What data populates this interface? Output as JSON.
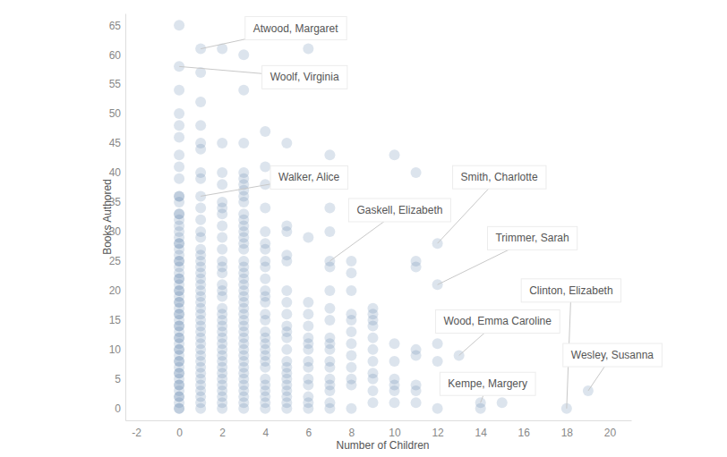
{
  "chart_data": {
    "type": "scatter",
    "marker": "circle",
    "color": "#4e79a7",
    "grid": false,
    "x_label": "Number of Children",
    "y_label": "Books Authored",
    "xlim": [
      -2.5,
      21
    ],
    "ylim": [
      -2,
      67
    ],
    "xticks": [
      -2,
      0,
      2,
      4,
      6,
      8,
      10,
      12,
      14,
      16,
      18,
      20
    ],
    "yticks": [
      0,
      5,
      10,
      15,
      20,
      25,
      30,
      35,
      40,
      45,
      50,
      55,
      60,
      65
    ],
    "x": [
      0,
      0,
      0,
      0,
      0,
      0,
      0,
      0,
      0,
      0,
      0,
      0,
      0,
      0,
      0,
      0,
      0,
      0,
      0,
      0,
      0,
      0,
      0,
      0,
      0,
      0,
      0,
      0,
      0,
      0,
      0,
      0,
      0,
      0,
      0,
      0,
      0,
      0,
      0,
      0,
      0,
      0,
      0,
      0,
      0,
      0,
      0,
      0,
      0,
      0,
      0,
      0,
      0,
      0,
      0,
      0,
      0,
      0,
      0,
      0,
      0,
      1,
      1,
      1,
      1,
      1,
      1,
      1,
      1,
      1,
      1,
      1,
      1,
      1,
      1,
      1,
      1,
      1,
      1,
      1,
      1,
      1,
      1,
      1,
      1,
      1,
      1,
      1,
      1,
      1,
      1,
      1,
      1,
      1,
      1,
      1,
      1,
      1,
      1,
      1,
      1,
      1,
      2,
      2,
      2,
      2,
      2,
      2,
      2,
      2,
      2,
      2,
      2,
      2,
      2,
      2,
      2,
      2,
      2,
      2,
      2,
      2,
      2,
      2,
      2,
      2,
      2,
      2,
      2,
      2,
      2,
      2,
      2,
      2,
      2,
      2,
      3,
      3,
      3,
      3,
      3,
      3,
      3,
      3,
      3,
      3,
      3,
      3,
      3,
      3,
      3,
      3,
      3,
      3,
      3,
      3,
      3,
      3,
      3,
      3,
      3,
      3,
      3,
      3,
      3,
      3,
      3,
      3,
      3,
      3,
      3,
      3,
      3,
      3,
      3,
      3,
      3,
      3,
      4,
      4,
      4,
      4,
      4,
      4,
      4,
      4,
      4,
      4,
      4,
      4,
      4,
      4,
      4,
      4,
      4,
      4,
      4,
      4,
      4,
      4,
      4,
      4,
      4,
      4,
      4,
      4,
      5,
      5,
      5,
      5,
      5,
      5,
      5,
      5,
      5,
      5,
      5,
      5,
      5,
      5,
      5,
      5,
      5,
      5,
      5,
      5,
      5,
      6,
      6,
      6,
      6,
      6,
      6,
      6,
      6,
      6,
      6,
      6,
      6,
      6,
      6,
      6,
      7,
      7,
      7,
      7,
      7,
      7,
      7,
      7,
      7,
      7,
      7,
      7,
      7,
      7,
      7,
      7,
      7,
      7,
      8,
      8,
      8,
      8,
      8,
      8,
      8,
      8,
      8,
      8,
      8,
      8,
      9,
      9,
      9,
      9,
      9,
      9,
      9,
      9,
      9,
      9,
      9,
      10,
      10,
      10,
      10,
      10,
      10,
      10,
      11,
      11,
      11,
      11,
      11,
      11,
      11,
      11,
      12,
      12,
      12,
      12,
      12,
      13,
      14,
      14,
      15,
      18,
      19
    ],
    "values": [
      65,
      58,
      54,
      50,
      48,
      46,
      43,
      41,
      39,
      36,
      36,
      35,
      33,
      33,
      32,
      31,
      30,
      29,
      28,
      28,
      27,
      26,
      25,
      25,
      24,
      23,
      22,
      22,
      21,
      20,
      20,
      19,
      18,
      18,
      17,
      16,
      16,
      15,
      14,
      14,
      13,
      12,
      12,
      11,
      10,
      10,
      9,
      8,
      8,
      7,
      6,
      6,
      5,
      4,
      4,
      3,
      2,
      2,
      1,
      0,
      0,
      61,
      57,
      52,
      48,
      45,
      44,
      40,
      39,
      36,
      34,
      32,
      30,
      29,
      27,
      26,
      25,
      24,
      23,
      22,
      21,
      20,
      19,
      18,
      17,
      16,
      15,
      14,
      13,
      12,
      11,
      10,
      9,
      8,
      7,
      6,
      5,
      4,
      3,
      2,
      1,
      0,
      61,
      45,
      40,
      38,
      35,
      34,
      33,
      31,
      29,
      27,
      25,
      24,
      23,
      21,
      20,
      19,
      17,
      16,
      15,
      14,
      13,
      12,
      11,
      10,
      9,
      8,
      7,
      6,
      5,
      4,
      3,
      2,
      1,
      0,
      60,
      54,
      45,
      40,
      39,
      38,
      37,
      36,
      35,
      33,
      32,
      31,
      30,
      29,
      28,
      27,
      25,
      24,
      23,
      22,
      21,
      20,
      19,
      18,
      17,
      16,
      15,
      14,
      13,
      12,
      11,
      10,
      9,
      8,
      7,
      6,
      5,
      4,
      3,
      2,
      1,
      0,
      47,
      41,
      38,
      34,
      30,
      28,
      27,
      25,
      24,
      22,
      20,
      19,
      18,
      16,
      15,
      13,
      12,
      11,
      10,
      9,
      8,
      7,
      5,
      4,
      3,
      2,
      1,
      0,
      45,
      31,
      30,
      26,
      25,
      20,
      18,
      16,
      14,
      13,
      12,
      10,
      8,
      7,
      6,
      5,
      4,
      3,
      2,
      1,
      0,
      61,
      29,
      18,
      16,
      14,
      12,
      11,
      10,
      8,
      7,
      5,
      4,
      2,
      1,
      0,
      43,
      34,
      30,
      25,
      24,
      20,
      17,
      15,
      12,
      11,
      10,
      8,
      7,
      5,
      4,
      3,
      1,
      0,
      25,
      23,
      20,
      16,
      15,
      13,
      11,
      9,
      7,
      5,
      4,
      0,
      17,
      16,
      15,
      14,
      12,
      10,
      8,
      6,
      5,
      3,
      1,
      43,
      11,
      8,
      5,
      4,
      3,
      1,
      40,
      25,
      24,
      10,
      9,
      4,
      3,
      1,
      28,
      21,
      11,
      8,
      0,
      9,
      1,
      0,
      1,
      0,
      3
    ],
    "annotations": [
      {
        "text": "Atwood, Margaret",
        "x": 1,
        "y": 61
      },
      {
        "text": "Woolf, Virginia",
        "x": 0,
        "y": 58
      },
      {
        "text": "Walker, Alice",
        "x": 1,
        "y": 36
      },
      {
        "text": "Gaskell, Elizabeth",
        "x": 7,
        "y": 25
      },
      {
        "text": "Smith, Charlotte",
        "x": 12,
        "y": 28
      },
      {
        "text": "Trimmer, Sarah",
        "x": 12,
        "y": 21
      },
      {
        "text": "Clinton, Elizabeth",
        "x": 18,
        "y": 0
      },
      {
        "text": "Wood, Emma Caroline",
        "x": 13,
        "y": 9
      },
      {
        "text": "Kempe, Margery",
        "x": 14,
        "y": 1
      },
      {
        "text": "Wesley, Susanna",
        "x": 19,
        "y": 3
      }
    ]
  }
}
